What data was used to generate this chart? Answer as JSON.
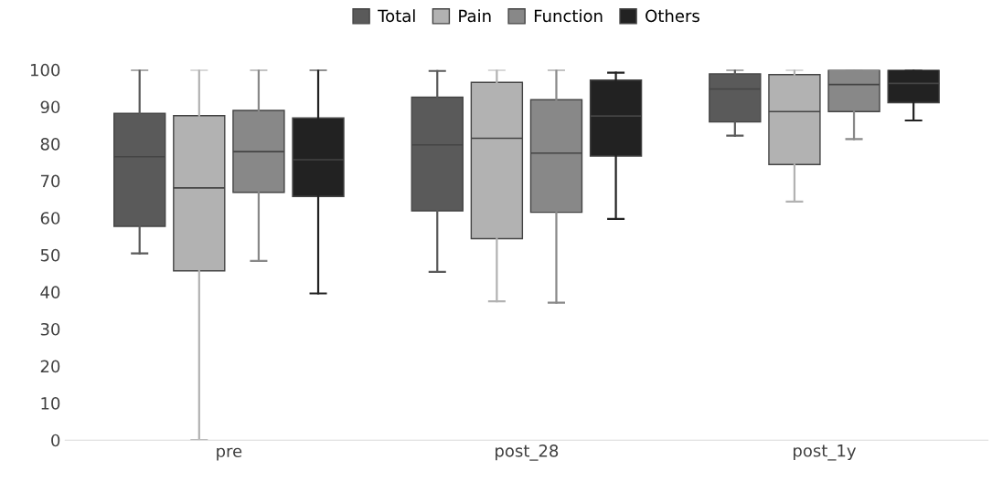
{
  "chart_data": {
    "type": "box",
    "categories": [
      "pre",
      "post_28",
      "post_1y"
    ],
    "series": [
      {
        "name": "Total",
        "color": "#5a5a5a",
        "boxes": [
          {
            "low": 50.4,
            "q1": 57.7,
            "median": 76.5,
            "q3": 88.2,
            "high": 100
          },
          {
            "low": 45.4,
            "q1": 61.9,
            "median": 79.7,
            "q3": 92.6,
            "high": 99.7
          },
          {
            "low": 82.2,
            "q1": 85.9,
            "median": 94.8,
            "q3": 98.9,
            "high": 100
          }
        ]
      },
      {
        "name": "Pain",
        "color": "#b2b2b2",
        "boxes": [
          {
            "low": 0,
            "q1": 45.7,
            "median": 68.1,
            "q3": 87.6,
            "high": 100
          },
          {
            "low": 37.5,
            "q1": 54.4,
            "median": 81.5,
            "q3": 96.6,
            "high": 100
          },
          {
            "low": 64.4,
            "q1": 74.4,
            "median": 88.7,
            "q3": 98.7,
            "high": 100
          }
        ]
      },
      {
        "name": "Function",
        "color": "#888888",
        "boxes": [
          {
            "low": 48.4,
            "q1": 66.9,
            "median": 77.9,
            "q3": 89.0,
            "high": 100
          },
          {
            "low": 37.1,
            "q1": 61.5,
            "median": 77.5,
            "q3": 91.9,
            "high": 100
          },
          {
            "low": 81.3,
            "q1": 88.7,
            "median": 96.0,
            "q3": 100,
            "high": 100
          }
        ]
      },
      {
        "name": "Others",
        "color": "#222222",
        "boxes": [
          {
            "low": 39.6,
            "q1": 65.8,
            "median": 75.7,
            "q3": 87.0,
            "high": 100
          },
          {
            "low": 59.7,
            "q1": 76.7,
            "median": 87.5,
            "q3": 97.2,
            "high": 99.2
          },
          {
            "low": 86.3,
            "q1": 91.1,
            "median": 96.3,
            "q3": 100,
            "high": 100
          }
        ]
      }
    ],
    "ylim": [
      0,
      100
    ],
    "yticks": [
      0,
      10,
      20,
      30,
      40,
      50,
      60,
      70,
      80,
      90,
      100
    ],
    "grid": false,
    "legend": "top"
  }
}
